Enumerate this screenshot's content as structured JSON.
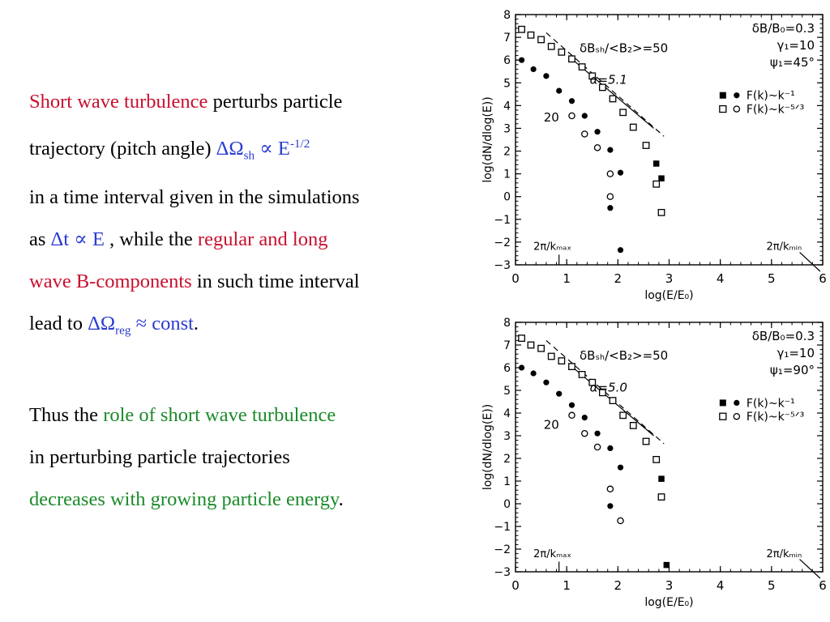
{
  "text": {
    "l1_red": "Short wave turbulence",
    "l1_rest": " perturbs particle",
    "l2_a": "trajectory (pitch angle) ",
    "l2_sym": "ΔΩ",
    "l2_sub": "sh",
    "l2_prop": " ∝ E",
    "l2_sup": "-1/2",
    "l3": "in a time interval given in the simulations",
    "l4_a": "as ",
    "l4_blue": "Δt ∝ E",
    "l4_b": " , while the ",
    "l4_red": "regular and long",
    "l5_red": "wave B-components",
    "l5_rest": " in such time interval",
    "l6_a": "lead to ",
    "l6_sym": "ΔΩ",
    "l6_sub": "reg",
    "l6_blue": " ≈ const",
    "l6_end": ".",
    "l7_a": "Thus the ",
    "l7_green": "role of short wave turbulence",
    "l8": "in perturbing particle trajectories",
    "l9_green": "decreases with growing particle energy",
    "l9_end": "."
  },
  "chart_data": [
    {
      "type": "scatter",
      "xlabel": "log(E/E₀)",
      "ylabel": "log(dN/dlog(E))",
      "xlim": [
        0,
        6
      ],
      "ylim": [
        -3,
        8
      ],
      "xticks": [
        "0",
        "1",
        "2",
        "3",
        "4",
        "5",
        "6"
      ],
      "yticks": [
        "−3",
        "−2",
        "−1",
        "0",
        "1",
        "2",
        "3",
        "4",
        "5",
        "6",
        "7",
        "8"
      ],
      "params": [
        "δB/B₀=0.3",
        "γ₁=10",
        "ψ₁=45°"
      ],
      "annotations": {
        "ratio": "δBₛₕ/<B₂>=50",
        "alpha": "α=5.1",
        "twenty": "20",
        "kmax": "2π/kₘₐₓ",
        "kmin": "2π/kₘᵢₙ"
      },
      "legend": [
        "F(k)~k⁻¹",
        "F(k)~k⁻⁵ᐟ³"
      ],
      "series": [
        {
          "name": "F(k)~k⁻¹ (filled squares)",
          "marker": "filled-square",
          "x": [
            0.12,
            0.3,
            0.5,
            0.7,
            0.9,
            1.1,
            1.3,
            1.5,
            1.7,
            1.9,
            2.1,
            2.3,
            2.55,
            2.75,
            2.85
          ],
          "y": [
            7.35,
            7.1,
            6.9,
            6.6,
            6.35,
            6.05,
            5.7,
            5.3,
            4.8,
            4.3,
            3.7,
            3.05,
            2.25,
            1.45,
            0.8
          ]
        },
        {
          "name": "F(k)~k⁻⁵ᐟ³ (open squares)",
          "marker": "open-square",
          "x": [
            0.12,
            0.3,
            0.5,
            0.7,
            0.9,
            1.1,
            1.3,
            1.5,
            1.7,
            1.9,
            2.1,
            2.3,
            2.55,
            2.75,
            2.85
          ],
          "y": [
            7.35,
            7.1,
            6.9,
            6.6,
            6.35,
            6.05,
            5.7,
            5.3,
            4.8,
            4.3,
            3.7,
            3.05,
            2.25,
            0.55,
            -0.7
          ]
        },
        {
          "name": "F(k)~k⁻¹ (filled circles)",
          "marker": "filled-circle",
          "x": [
            0.12,
            0.35,
            0.6,
            0.85,
            1.1,
            1.35,
            1.6,
            1.85,
            2.05
          ],
          "y": [
            6.0,
            5.6,
            5.3,
            4.65,
            4.2,
            3.55,
            2.85,
            2.05,
            1.05
          ]
        },
        {
          "name": "F(k)~k⁻⁵ᐟ³ (open circles)",
          "marker": "open-circle",
          "x": [
            1.1,
            1.35,
            1.6,
            1.85
          ],
          "y": [
            3.55,
            2.75,
            2.15,
            1.0
          ]
        },
        {
          "name": "extra filled circles",
          "marker": "filled-circle",
          "x": [
            1.85,
            2.05
          ],
          "y": [
            -0.5,
            -2.35
          ]
        },
        {
          "name": "extra open circle",
          "marker": "open-circle",
          "x": [
            1.85
          ],
          "y": [
            0.0
          ]
        }
      ],
      "fit_lines": [
        {
          "x": [
            0.6,
            2.9
          ],
          "y": [
            7.2,
            2.65
          ],
          "style": "dashed"
        },
        {
          "x": [
            1.1,
            2.7
          ],
          "y": [
            6.05,
            3.0
          ],
          "style": "solid"
        }
      ]
    },
    {
      "type": "scatter",
      "xlabel": "log(E/E₀)",
      "ylabel": "log(dN/dlog(E))",
      "xlim": [
        0,
        6
      ],
      "ylim": [
        -3,
        8
      ],
      "xticks": [
        "0",
        "1",
        "2",
        "3",
        "4",
        "5",
        "6"
      ],
      "yticks": [
        "−3",
        "−2",
        "−1",
        "0",
        "1",
        "2",
        "3",
        "4",
        "5",
        "6",
        "7",
        "8"
      ],
      "params": [
        "δB/B₀=0.3",
        "γ₁=10",
        "ψ₁=90°"
      ],
      "annotations": {
        "ratio": "δBₛₕ/<B₂>=50",
        "alpha": "α=5.0",
        "twenty": "20",
        "kmax": "2π/kₘₐₓ",
        "kmin": "2π/kₘᵢₙ"
      },
      "legend": [
        "F(k)~k⁻¹",
        "F(k)~k⁻⁵ᐟ³"
      ],
      "series": [
        {
          "name": "F(k)~k⁻¹ (filled squares)",
          "marker": "filled-square",
          "x": [
            0.12,
            0.3,
            0.5,
            0.7,
            0.9,
            1.1,
            1.3,
            1.5,
            1.7,
            1.9,
            2.1,
            2.3,
            2.55,
            2.75,
            2.85,
            2.95
          ],
          "y": [
            7.3,
            7.0,
            6.85,
            6.5,
            6.3,
            6.05,
            5.7,
            5.35,
            4.9,
            4.55,
            3.9,
            3.45,
            2.75,
            1.95,
            1.1,
            -2.7
          ]
        },
        {
          "name": "F(k)~k⁻⁵ᐟ³ (open squares)",
          "marker": "open-square",
          "x": [
            0.12,
            0.3,
            0.5,
            0.7,
            0.9,
            1.1,
            1.3,
            1.5,
            1.7,
            1.9,
            2.1,
            2.3,
            2.55,
            2.75,
            2.85
          ],
          "y": [
            7.3,
            7.0,
            6.85,
            6.5,
            6.3,
            6.05,
            5.7,
            5.35,
            4.9,
            4.55,
            3.9,
            3.45,
            2.75,
            1.95,
            0.3
          ]
        },
        {
          "name": "F(k)~k⁻¹ (filled circles)",
          "marker": "filled-circle",
          "x": [
            0.12,
            0.35,
            0.6,
            0.85,
            1.1,
            1.35,
            1.6,
            1.85,
            2.05,
            1.85,
            2.05
          ],
          "y": [
            6.0,
            5.75,
            5.35,
            4.85,
            4.35,
            3.8,
            3.1,
            2.45,
            1.6,
            -0.1,
            -0.75
          ]
        },
        {
          "name": "F(k)~k⁻⁵ᐟ³ (open circles)",
          "marker": "open-circle",
          "x": [
            1.1,
            1.35,
            1.6,
            1.85,
            2.05
          ],
          "y": [
            3.9,
            3.1,
            2.5,
            0.65,
            -0.75
          ]
        }
      ],
      "fit_lines": [
        {
          "x": [
            0.6,
            2.9
          ],
          "y": [
            7.2,
            2.65
          ],
          "style": "dashed"
        },
        {
          "x": [
            1.1,
            2.7
          ],
          "y": [
            6.05,
            3.0
          ],
          "style": "solid"
        }
      ]
    }
  ]
}
